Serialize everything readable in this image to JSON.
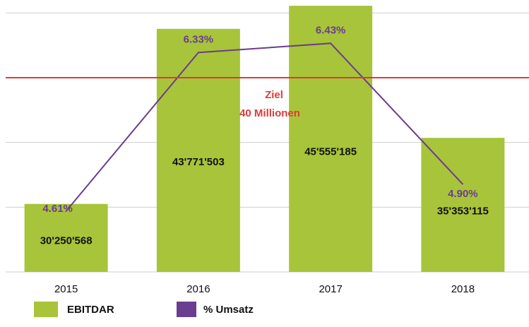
{
  "chart_data": {
    "type": "bar_line",
    "categories": [
      "2015",
      "2016",
      "2017",
      "2018"
    ],
    "series": [
      {
        "name": "EBITDAR",
        "color": "#a8c43a",
        "type": "bar",
        "values": [
          30250568,
          43771503,
          45555185,
          35353115
        ],
        "value_labels": [
          "30'250'568",
          "43'771'503",
          "45'555'185",
          "35'353'115"
        ]
      },
      {
        "name": "% Umsatz",
        "color": "#6a3d8f",
        "type": "line",
        "axis": "y2",
        "values": [
          4.61,
          6.33,
          6.43,
          4.9
        ],
        "value_labels": [
          "4.61%",
          "6.33%",
          "6.43%",
          "4.90%"
        ]
      }
    ],
    "ylim": [
      25000000,
      46000000
    ],
    "yticks": [
      25000000,
      30000000,
      35000000,
      40000000,
      45000000
    ],
    "grid": true,
    "y2lim": [
      3.95,
      6.9
    ],
    "target": {
      "value": 40000000,
      "color": "#e03a3a",
      "label": [
        "Ziel",
        "40 Millionen"
      ]
    }
  }
}
